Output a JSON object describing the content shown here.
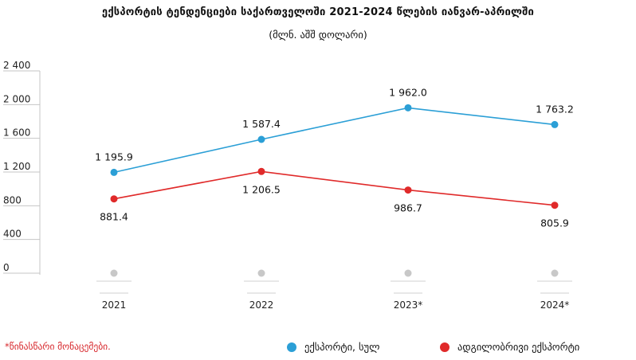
{
  "colors": {
    "series1": "#2b9fd6",
    "series2": "#e02a2a",
    "axis": "#bfbfbf",
    "zero_marker": "#c8c8c8",
    "footnote": "#d7262b"
  },
  "footnote": "*წინასწარი მონაცემები.",
  "chart_data": {
    "type": "line",
    "title": "ექსპორტის ტენდენციები საქართველოში 2021-2024 წლების იანვარ-აპრილში",
    "subtitle": "(მლნ. აშშ დოლარი)",
    "categories": [
      "2021",
      "2022",
      "2023*",
      "2024*"
    ],
    "series": [
      {
        "name": "ექსპორტი, სულ",
        "values": [
          1195.9,
          1587.4,
          1962.0,
          1763.2
        ],
        "labels": [
          "1 195.9",
          "1 587.4",
          "1 962.0",
          "1 763.2"
        ],
        "color": "#2b9fd6"
      },
      {
        "name": "ადგილობრივი ექსპორტი",
        "values": [
          881.4,
          1206.5,
          986.7,
          805.9
        ],
        "labels": [
          "881.4",
          "1 206.5",
          "986.7",
          "805.9"
        ],
        "color": "#e02a2a"
      }
    ],
    "yticks": [
      0,
      400,
      800,
      1200,
      1600,
      2000,
      2400
    ],
    "ytick_labels": [
      "0",
      "400",
      "800",
      "1 200",
      "1 600",
      "2 000",
      "2 400"
    ],
    "ylim": [
      0,
      2400
    ],
    "grid": false,
    "legend_position": "bottom-right"
  }
}
